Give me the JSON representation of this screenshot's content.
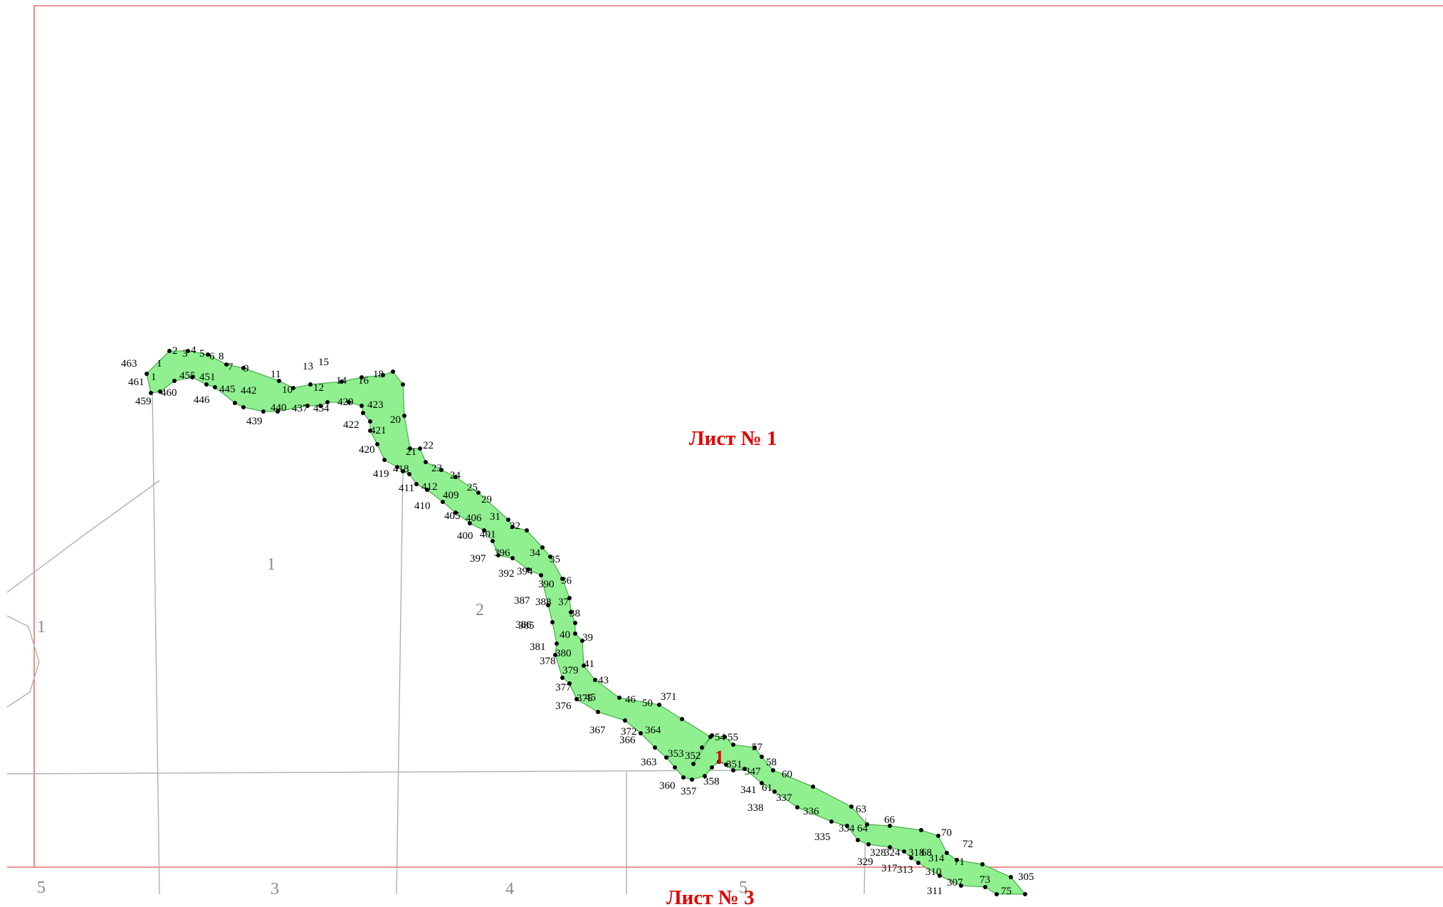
{
  "sheet_labels": {
    "sheet1": "Лист № 1",
    "sheet3": "Лист № 3"
  },
  "object_label": "1",
  "parcel_labels": [
    "1",
    "1",
    "2",
    "3",
    "4",
    "5",
    "5"
  ],
  "colors": {
    "strip_fill": "#90f090",
    "strip_stroke": "#30a030",
    "sheet_frame": "#e05050",
    "parcel_lines": "#b0b0b0",
    "points": "#000000",
    "sheet_label": "#e00000"
  },
  "point_labels": [
    "463",
    "461",
    "459",
    "1",
    "1",
    "2",
    "3",
    "4",
    "5",
    "6",
    "8",
    "7",
    "9",
    "455",
    "451",
    "460",
    "446",
    "445",
    "442",
    "11",
    "10",
    "13",
    "15",
    "12",
    "14",
    "16",
    "18",
    "440",
    "437",
    "439",
    "434",
    "429",
    "423",
    "422",
    "421",
    "20",
    "420",
    "21",
    "22",
    "419",
    "418",
    "411",
    "412",
    "410",
    "23",
    "24",
    "25",
    "409",
    "29",
    "405",
    "406",
    "400",
    "401",
    "31",
    "32",
    "397",
    "396",
    "34",
    "35",
    "392",
    "394",
    "390",
    "36",
    "387",
    "388",
    "37",
    "385",
    "38",
    "386",
    "40",
    "39",
    "381",
    "380",
    "378",
    "379",
    "41",
    "43",
    "377",
    "375",
    "376",
    "45",
    "46",
    "50",
    "371",
    "372",
    "367",
    "366",
    "364",
    "363",
    "353",
    "352",
    "54",
    "55",
    "57",
    "351",
    "347",
    "58",
    "360",
    "357",
    "358",
    "60",
    "341",
    "61",
    "337",
    "338",
    "336",
    "63",
    "335",
    "334",
    "64",
    "66",
    "329",
    "328",
    "324",
    "318",
    "68",
    "70",
    "72",
    "317",
    "314",
    "71",
    "313",
    "310",
    "311",
    "307",
    "73",
    "305",
    "75"
  ]
}
